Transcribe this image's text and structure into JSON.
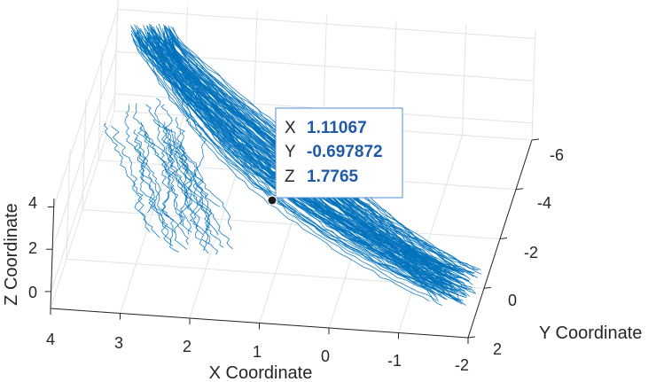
{
  "chart_data": {
    "type": "line3d",
    "xlabel": "X Coordinate",
    "ylabel": "Y Coordinate",
    "zlabel": "Z Coordinate",
    "xlim": [
      -2,
      4
    ],
    "ylim": [
      -6,
      2
    ],
    "zlim": [
      -0.8,
      4.4
    ],
    "x_ticks": [
      "4",
      "3",
      "2",
      "1",
      "0",
      "-1",
      "-2"
    ],
    "y_ticks": [
      "-6",
      "-4",
      "-2",
      "0",
      "2"
    ],
    "z_ticks": [
      "0",
      "2",
      "4"
    ],
    "grid": true,
    "series_color": "#0072BD",
    "datatip": {
      "point": {
        "x": 1.11067,
        "y": -0.697872,
        "z": 1.7765
      },
      "rows": [
        {
          "key": "X",
          "value": "1.11067"
        },
        {
          "key": "Y",
          "value": "-0.697872"
        },
        {
          "key": "Z",
          "value": "1.7765"
        }
      ]
    }
  }
}
